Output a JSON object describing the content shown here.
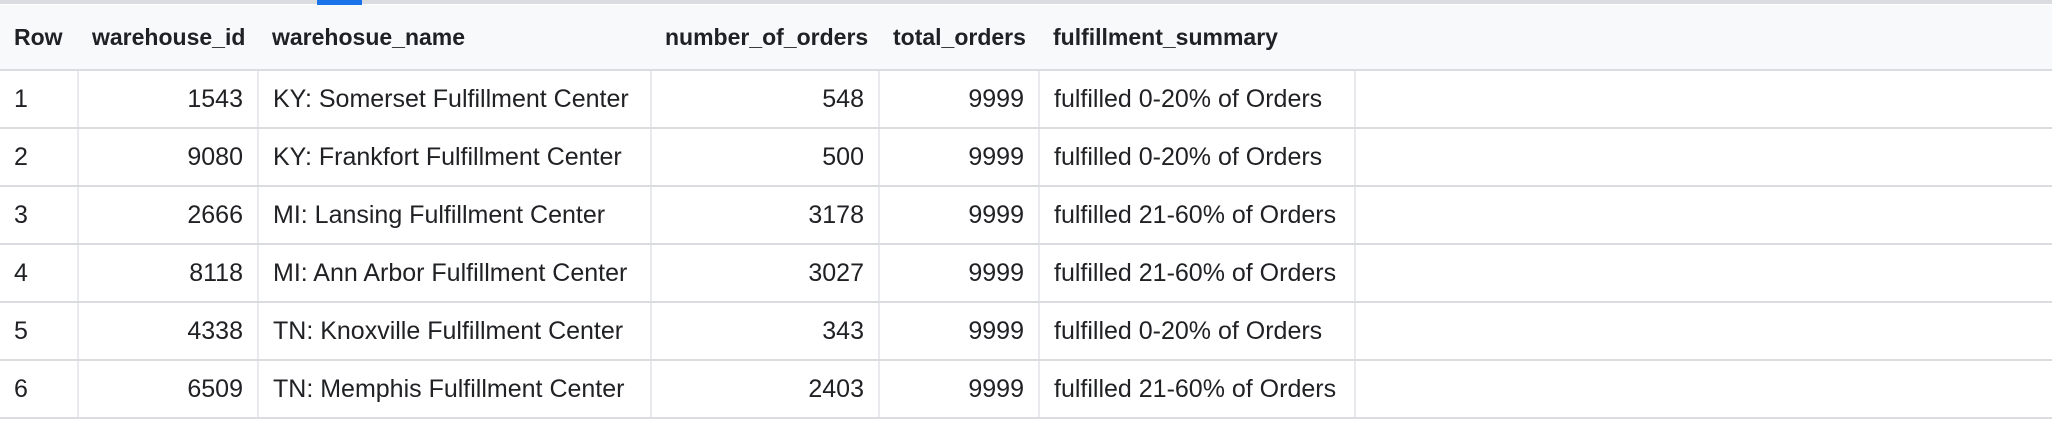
{
  "table": {
    "columns": [
      "Row",
      "warehouse_id",
      "warehosue_name",
      "number_of_orders",
      "total_orders",
      "fulfillment_summary"
    ],
    "rows": [
      {
        "row": "1",
        "warehouse_id": "1543",
        "warehouse_name": "KY: Somerset Fulfillment Center",
        "number_of_orders": "548",
        "total_orders": "9999",
        "fulfillment_summary": "fulfilled 0-20% of Orders"
      },
      {
        "row": "2",
        "warehouse_id": "9080",
        "warehouse_name": "KY: Frankfort Fulfillment Center",
        "number_of_orders": "500",
        "total_orders": "9999",
        "fulfillment_summary": "fulfilled 0-20% of Orders"
      },
      {
        "row": "3",
        "warehouse_id": "2666",
        "warehouse_name": "MI: Lansing Fulfillment Center",
        "number_of_orders": "3178",
        "total_orders": "9999",
        "fulfillment_summary": "fulfilled 21-60% of Orders"
      },
      {
        "row": "4",
        "warehouse_id": "8118",
        "warehouse_name": "MI: Ann Arbor Fulfillment Center",
        "number_of_orders": "3027",
        "total_orders": "9999",
        "fulfillment_summary": "fulfilled 21-60% of Orders"
      },
      {
        "row": "5",
        "warehouse_id": "4338",
        "warehouse_name": "TN: Knoxville Fulfillment Center",
        "number_of_orders": "343",
        "total_orders": "9999",
        "fulfillment_summary": "fulfilled 0-20% of Orders"
      },
      {
        "row": "6",
        "warehouse_id": "6509",
        "warehouse_name": "TN: Memphis Fulfillment Center",
        "number_of_orders": "2403",
        "total_orders": "9999",
        "fulfillment_summary": "fulfilled 21-60% of Orders"
      }
    ]
  },
  "colors": {
    "header_bg": "#f8f9fa",
    "border": "#dadce0",
    "text": "#202124",
    "accent": "#1a73e8"
  }
}
